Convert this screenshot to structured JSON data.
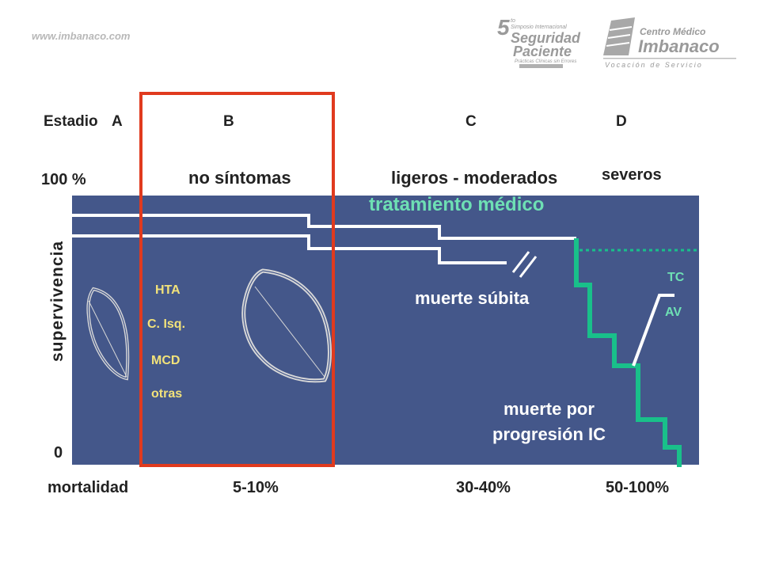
{
  "header": {
    "site": "www.imbanaco.com",
    "logo_symposium": {
      "number": "5",
      "ordinal": "to",
      "line1": "Simposio Internacional",
      "line2": "Seguridad",
      "line3": "Paciente",
      "line4": "Prácticas Clínicas sin Errores"
    },
    "logo_clinic": {
      "line1": "Centro Médico",
      "line2": "Imbanaco",
      "tagline": "Vocación de Servicio"
    }
  },
  "stages": {
    "prefix": "Estadio",
    "a": "A",
    "b": "B",
    "c": "C",
    "d": "D"
  },
  "headings": {
    "percent_100": "100 %",
    "no_symptoms": "no síntomas",
    "mild_moderate": "ligeros - moderados",
    "severe": "severos"
  },
  "axis": {
    "y_label": "supervivencia",
    "zero": "0"
  },
  "panel": {
    "treatment": "tratamiento médico",
    "sudden_death": "muerte súbita",
    "death_progression_1": "muerte por",
    "death_progression_2": "progresión IC",
    "tc": "TC",
    "av": "AV",
    "causes": [
      "HTA",
      "C. Isq.",
      "MCD",
      "otras"
    ]
  },
  "footer": {
    "mortality": "mortalidad",
    "b_value": "5-10%",
    "c_value": "30-40%",
    "d_value": "50-100%"
  },
  "colors": {
    "panel": "#44578a",
    "highlight_box": "#e03a1e",
    "treatment_text": "#6ee0b4",
    "progression_line": "#19c08a",
    "causes_text": "#f2e27a"
  }
}
